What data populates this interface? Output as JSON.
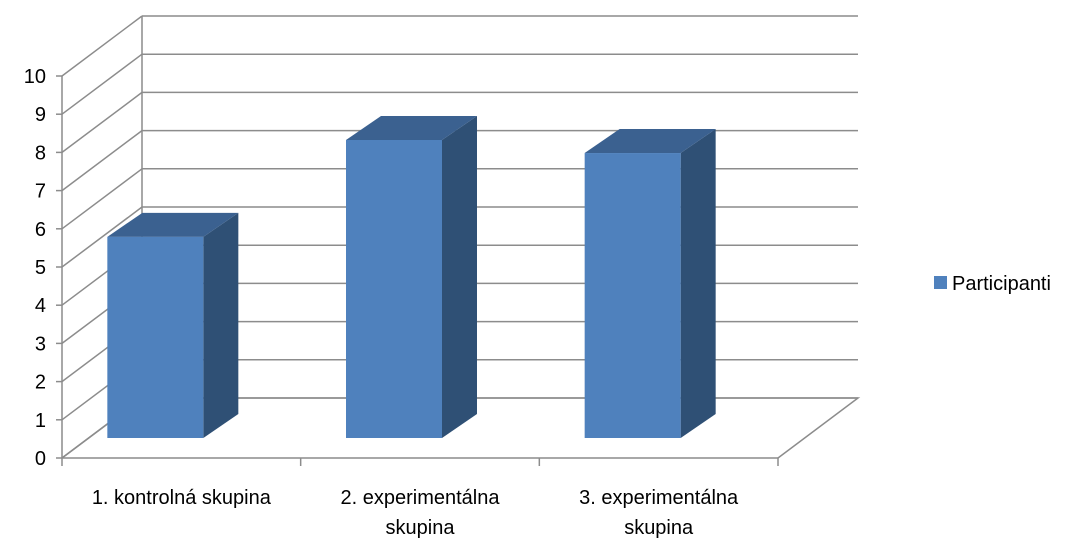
{
  "chart_data": {
    "type": "bar",
    "style": "3d-column",
    "categories": [
      [
        "1. kontrolná skupina"
      ],
      [
        "2. experimentálna",
        "skupina"
      ],
      [
        "3. experimentálna",
        "skupina"
      ]
    ],
    "series": [
      {
        "name": "Participanti",
        "values": [
          5.4,
          8.0,
          7.65
        ],
        "color": "#4f81bd"
      }
    ],
    "ylim": [
      0,
      10
    ],
    "yticks": [
      0,
      1,
      2,
      3,
      4,
      5,
      6,
      7,
      8,
      9,
      10
    ],
    "grid": true,
    "legend": "right",
    "colors": {
      "front": "#4f81bd",
      "side": "#2f5075",
      "top": "#3b6190",
      "grid": "#8c8c8c"
    }
  }
}
